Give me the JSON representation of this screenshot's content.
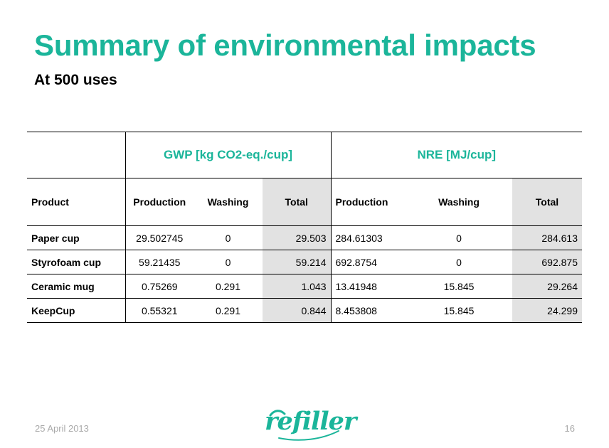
{
  "title": "Summary of environmental impacts",
  "subtitle": "At 500 uses",
  "accent_color": "#1bb59a",
  "table": {
    "groups": {
      "gwp": "GWP [kg CO2-eq./cup]",
      "nre": "NRE [MJ/cup]"
    },
    "headers": [
      "Product",
      "Production",
      "Washing",
      "Total",
      "Production",
      "Washing",
      "Total"
    ],
    "rows": [
      [
        "Paper cup",
        "29.502745",
        "0",
        "29.503",
        "284.61303",
        "0",
        "284.613"
      ],
      [
        "Styrofoam cup",
        "59.21435",
        "0",
        "59.214",
        "692.8754",
        "0",
        "692.875"
      ],
      [
        "Ceramic mug",
        "0.75269",
        "0.291",
        "1.043",
        "13.41948",
        "15.845",
        "29.264"
      ],
      [
        "KeepCup",
        "0.55321",
        "0.291",
        "0.844",
        "8.453808",
        "15.845",
        "24.299"
      ]
    ]
  },
  "footer": {
    "date": "25 April 2013",
    "logo_text": "refiller",
    "page_number": "16"
  }
}
